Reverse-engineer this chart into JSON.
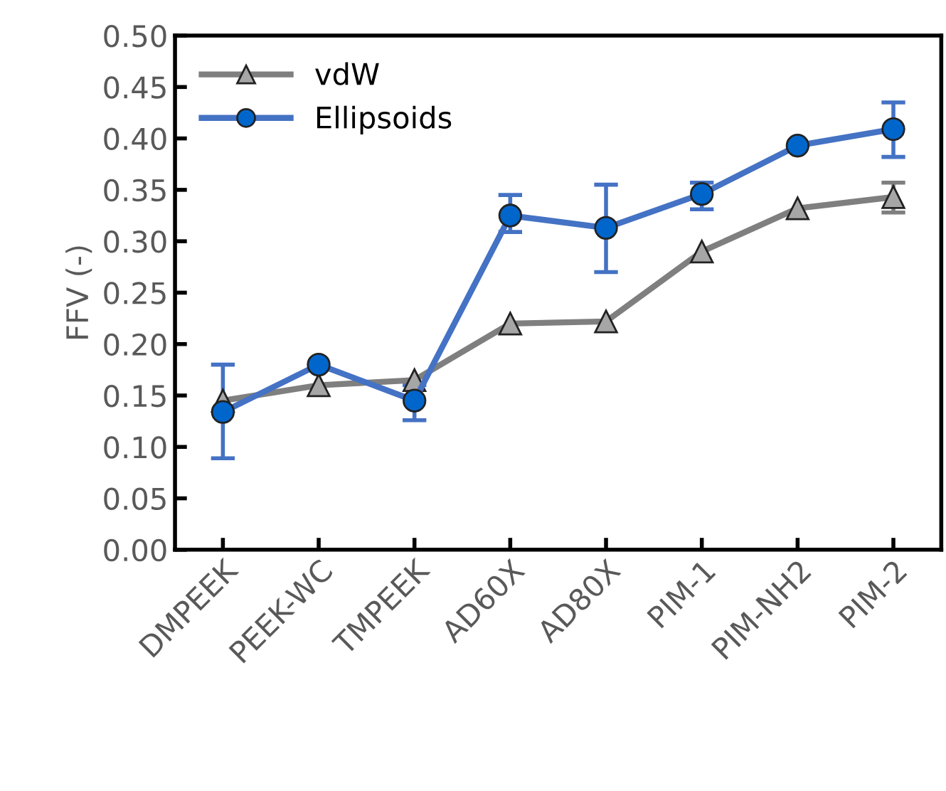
{
  "chart_data": {
    "type": "line",
    "ylabel": "FFV (-)",
    "categories": [
      "DMPEEK",
      "PEEK-WC",
      "TMPEEK",
      "AD60X",
      "AD80X",
      "PIM-1",
      "PIM-NH2",
      "PIM-2"
    ],
    "series": [
      {
        "name": "vdW",
        "color": "#7f7f7f",
        "marker": "triangle",
        "values": [
          0.145,
          0.16,
          0.165,
          0.22,
          0.222,
          0.29,
          0.332,
          0.343
        ],
        "errors": [
          null,
          null,
          null,
          null,
          null,
          null,
          null,
          [
            0.328,
            0.357
          ]
        ]
      },
      {
        "name": "Ellipsoids",
        "color": "#4472c4",
        "marker": "circle",
        "values": [
          0.134,
          0.18,
          0.145,
          0.325,
          0.313,
          0.346,
          0.393,
          0.409
        ],
        "errors": [
          [
            0.089,
            0.18
          ],
          null,
          [
            0.126,
            0.16
          ],
          [
            0.309,
            0.345
          ],
          [
            0.27,
            0.355
          ],
          [
            0.331,
            0.357
          ],
          null,
          [
            0.382,
            0.435
          ]
        ]
      }
    ],
    "ylim": [
      0,
      0.5
    ],
    "yticks": [
      {
        "value": 0,
        "label": "0.00"
      },
      {
        "value": 0.05,
        "label": "0.05"
      },
      {
        "value": 0.1,
        "label": "0.10"
      },
      {
        "value": 0.15,
        "label": "0.15"
      },
      {
        "value": 0.2,
        "label": "0.20"
      },
      {
        "value": 0.25,
        "label": "0.25"
      },
      {
        "value": 0.3,
        "label": "0.30"
      },
      {
        "value": 0.35,
        "label": "0.35"
      },
      {
        "value": 0.4,
        "label": "0.40"
      },
      {
        "value": 0.45,
        "label": "0.45"
      },
      {
        "value": 0.5,
        "label": "0.50"
      }
    ],
    "grid": false,
    "legend": "top left",
    "line_style": "solid"
  }
}
